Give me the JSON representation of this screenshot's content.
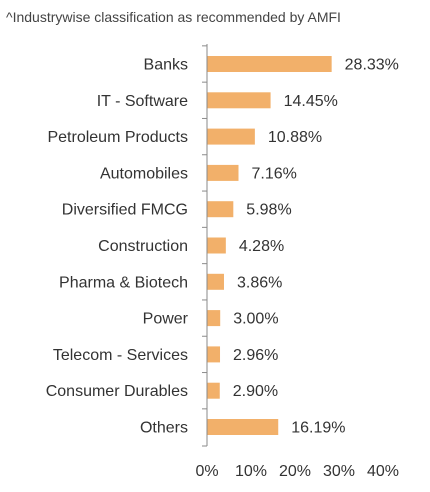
{
  "chart_data": {
    "type": "bar",
    "orientation": "horizontal",
    "note": "^Industrywise classification as recommended by AMFI",
    "categories": [
      "Banks",
      "IT - Software",
      "Petroleum Products",
      "Automobiles",
      "Diversified FMCG",
      "Construction",
      "Pharma & Biotech",
      "Power",
      "Telecom - Services",
      "Consumer Durables",
      "Others"
    ],
    "values": [
      28.33,
      14.45,
      10.88,
      7.16,
      5.98,
      4.28,
      3.86,
      3.0,
      2.96,
      2.9,
      16.19
    ],
    "value_labels": [
      "28.33%",
      "14.45%",
      "10.88%",
      "7.16%",
      "5.98%",
      "4.28%",
      "3.86%",
      "3.00%",
      "2.96%",
      "2.90%",
      "16.19%"
    ],
    "xlim": [
      0,
      40
    ],
    "x_ticks": [
      0,
      10,
      20,
      30,
      40
    ],
    "x_tick_labels": [
      "0%",
      "10%",
      "20%",
      "30%",
      "40%"
    ],
    "bar_color": "#f2b06a",
    "grid": false,
    "legend": "none"
  }
}
